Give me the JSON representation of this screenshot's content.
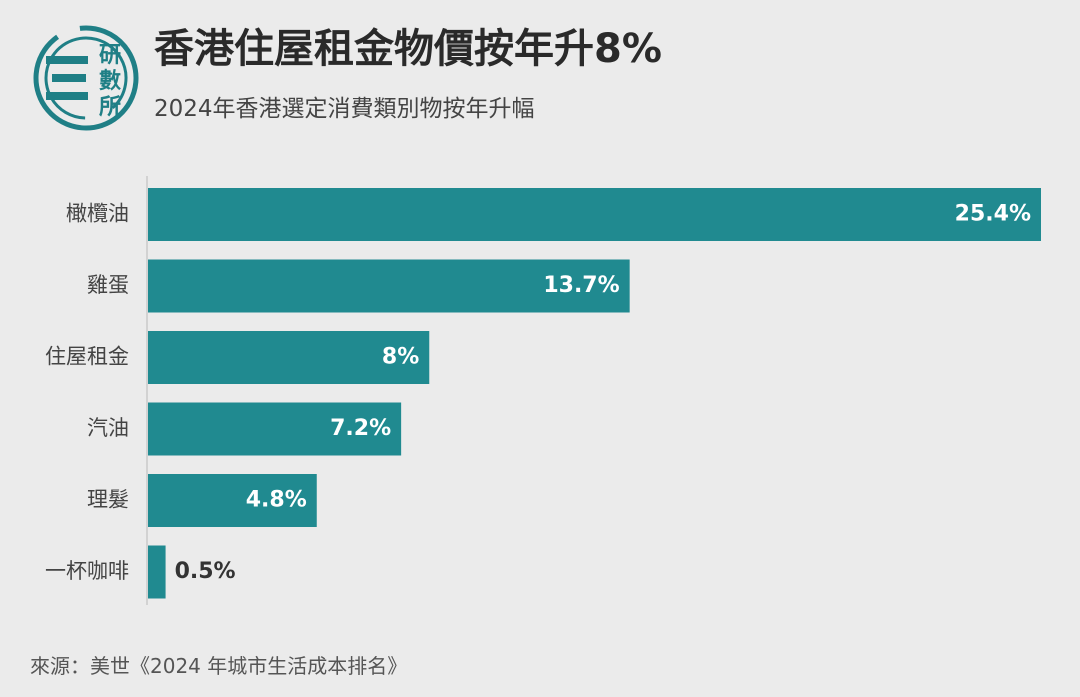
{
  "logo": {
    "chars": [
      "研",
      "數",
      "所"
    ],
    "color": "#1f7f86"
  },
  "header": {
    "title": "香港住屋租金物價按年升8%",
    "subtitle": "2024年香港選定消費類別物按年升幅"
  },
  "chart_data": {
    "type": "bar",
    "orientation": "horizontal",
    "categories": [
      "橄欖油",
      "雞蛋",
      "住屋租金",
      "汽油",
      "理髮",
      "一杯咖啡"
    ],
    "values": [
      25.4,
      13.7,
      8,
      7.2,
      4.8,
      0.5
    ],
    "value_labels": [
      "25.4%",
      "13.7%",
      "8%",
      "7.2%",
      "4.8%",
      "0.5%"
    ],
    "unit": "%",
    "xlim": [
      0,
      25.4
    ],
    "bar_color": "#208a90",
    "label_color_inside": "#ffffff",
    "label_color_outside": "#333333",
    "grid": false,
    "legend": "none"
  },
  "footer": {
    "source": "來源：美世《2024 年城市生活成本排名》"
  }
}
